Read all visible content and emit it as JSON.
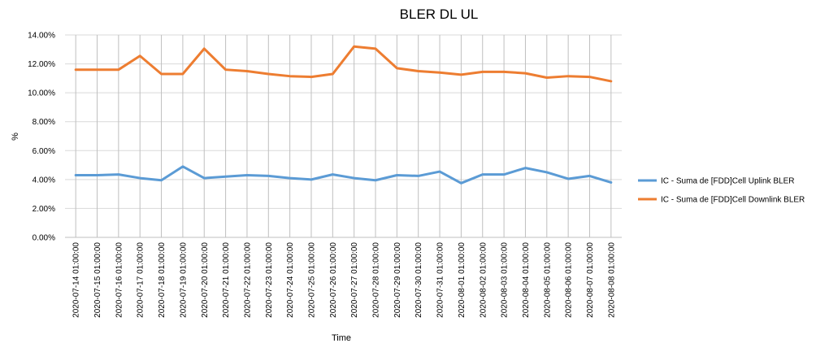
{
  "chart_data": {
    "type": "line",
    "title": "BLER DL UL",
    "xlabel": "Time",
    "ylabel": "%",
    "ylim": [
      0,
      14
    ],
    "ytick_labels": [
      "0.00%",
      "2.00%",
      "4.00%",
      "6.00%",
      "8.00%",
      "10.00%",
      "12.00%",
      "14.00%"
    ],
    "grid": true,
    "legend_position": "right",
    "categories": [
      "2020-07-14 01:00:00",
      "2020-07-15 01:00:00",
      "2020-07-16 01:00:00",
      "2020-07-17 01:00:00",
      "2020-07-18 01:00:00",
      "2020-07-19 01:00:00",
      "2020-07-20 01:00:00",
      "2020-07-21 01:00:00",
      "2020-07-22 01:00:00",
      "2020-07-23 01:00:00",
      "2020-07-24 01:00:00",
      "2020-07-25 01:00:00",
      "2020-07-26 01:00:00",
      "2020-07-27 01:00:00",
      "2020-07-28 01:00:00",
      "2020-07-29 01:00:00",
      "2020-07-30 01:00:00",
      "2020-07-31 01:00:00",
      "2020-08-01 01:00:00",
      "2020-08-02 01:00:00",
      "2020-08-03 01:00:00",
      "2020-08-04 01:00:00",
      "2020-08-05 01:00:00",
      "2020-08-06 01:00:00",
      "2020-08-07 01:00:00",
      "2020-08-08 01:00:00"
    ],
    "series": [
      {
        "name": "IC - Suma de [FDD]Cell Uplink BLER",
        "color": "#5b9bd5",
        "values": [
          4.3,
          4.3,
          4.35,
          4.1,
          3.95,
          4.9,
          4.1,
          4.2,
          4.3,
          4.25,
          4.1,
          4.0,
          4.35,
          4.1,
          3.95,
          4.3,
          4.25,
          4.55,
          3.75,
          4.35,
          4.35,
          4.8,
          4.5,
          4.05,
          4.25,
          3.8
        ]
      },
      {
        "name": "IC - Suma de [FDD]Cell Downlink BLER",
        "color": "#ed7d31",
        "values": [
          11.6,
          11.6,
          11.6,
          12.55,
          11.3,
          11.3,
          13.05,
          11.6,
          11.5,
          11.3,
          11.15,
          11.1,
          11.3,
          13.2,
          13.05,
          11.7,
          11.5,
          11.4,
          11.25,
          11.45,
          11.45,
          11.35,
          11.05,
          11.15,
          11.1,
          10.8
        ]
      }
    ]
  }
}
